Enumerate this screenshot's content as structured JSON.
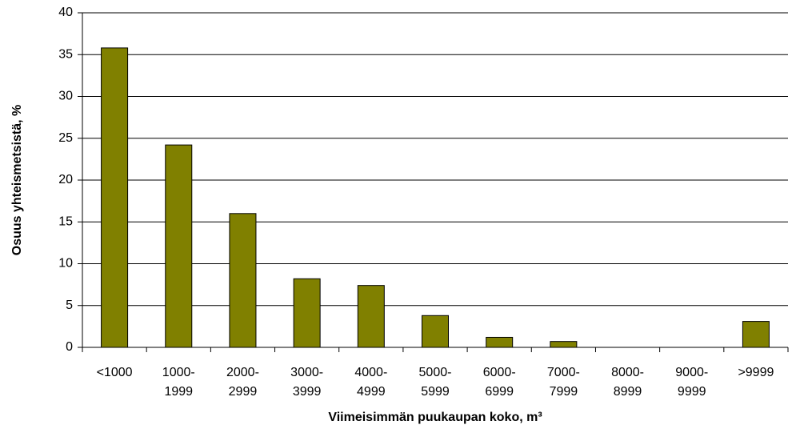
{
  "chart_data": {
    "type": "bar",
    "x_label": "Viimeisimmän puukaupan koko, m³",
    "y_label": "Osuus yhteismetsistä, %",
    "categories": [
      "<1000",
      "1000-1999",
      "2000-2999",
      "3000-3999",
      "4000-4999",
      "5000-5999",
      "6000-6999",
      "7000-7999",
      "8000-8999",
      "9000-9999",
      ">9999"
    ],
    "values": [
      35.8,
      24.2,
      16,
      8.2,
      7.4,
      3.8,
      1.2,
      0.7,
      0,
      0,
      3.1
    ],
    "color": "#808000",
    "ylim": [
      0,
      40
    ],
    "yticks": [
      0,
      5,
      10,
      15,
      20,
      25,
      30,
      35,
      40
    ],
    "grid": true
  }
}
